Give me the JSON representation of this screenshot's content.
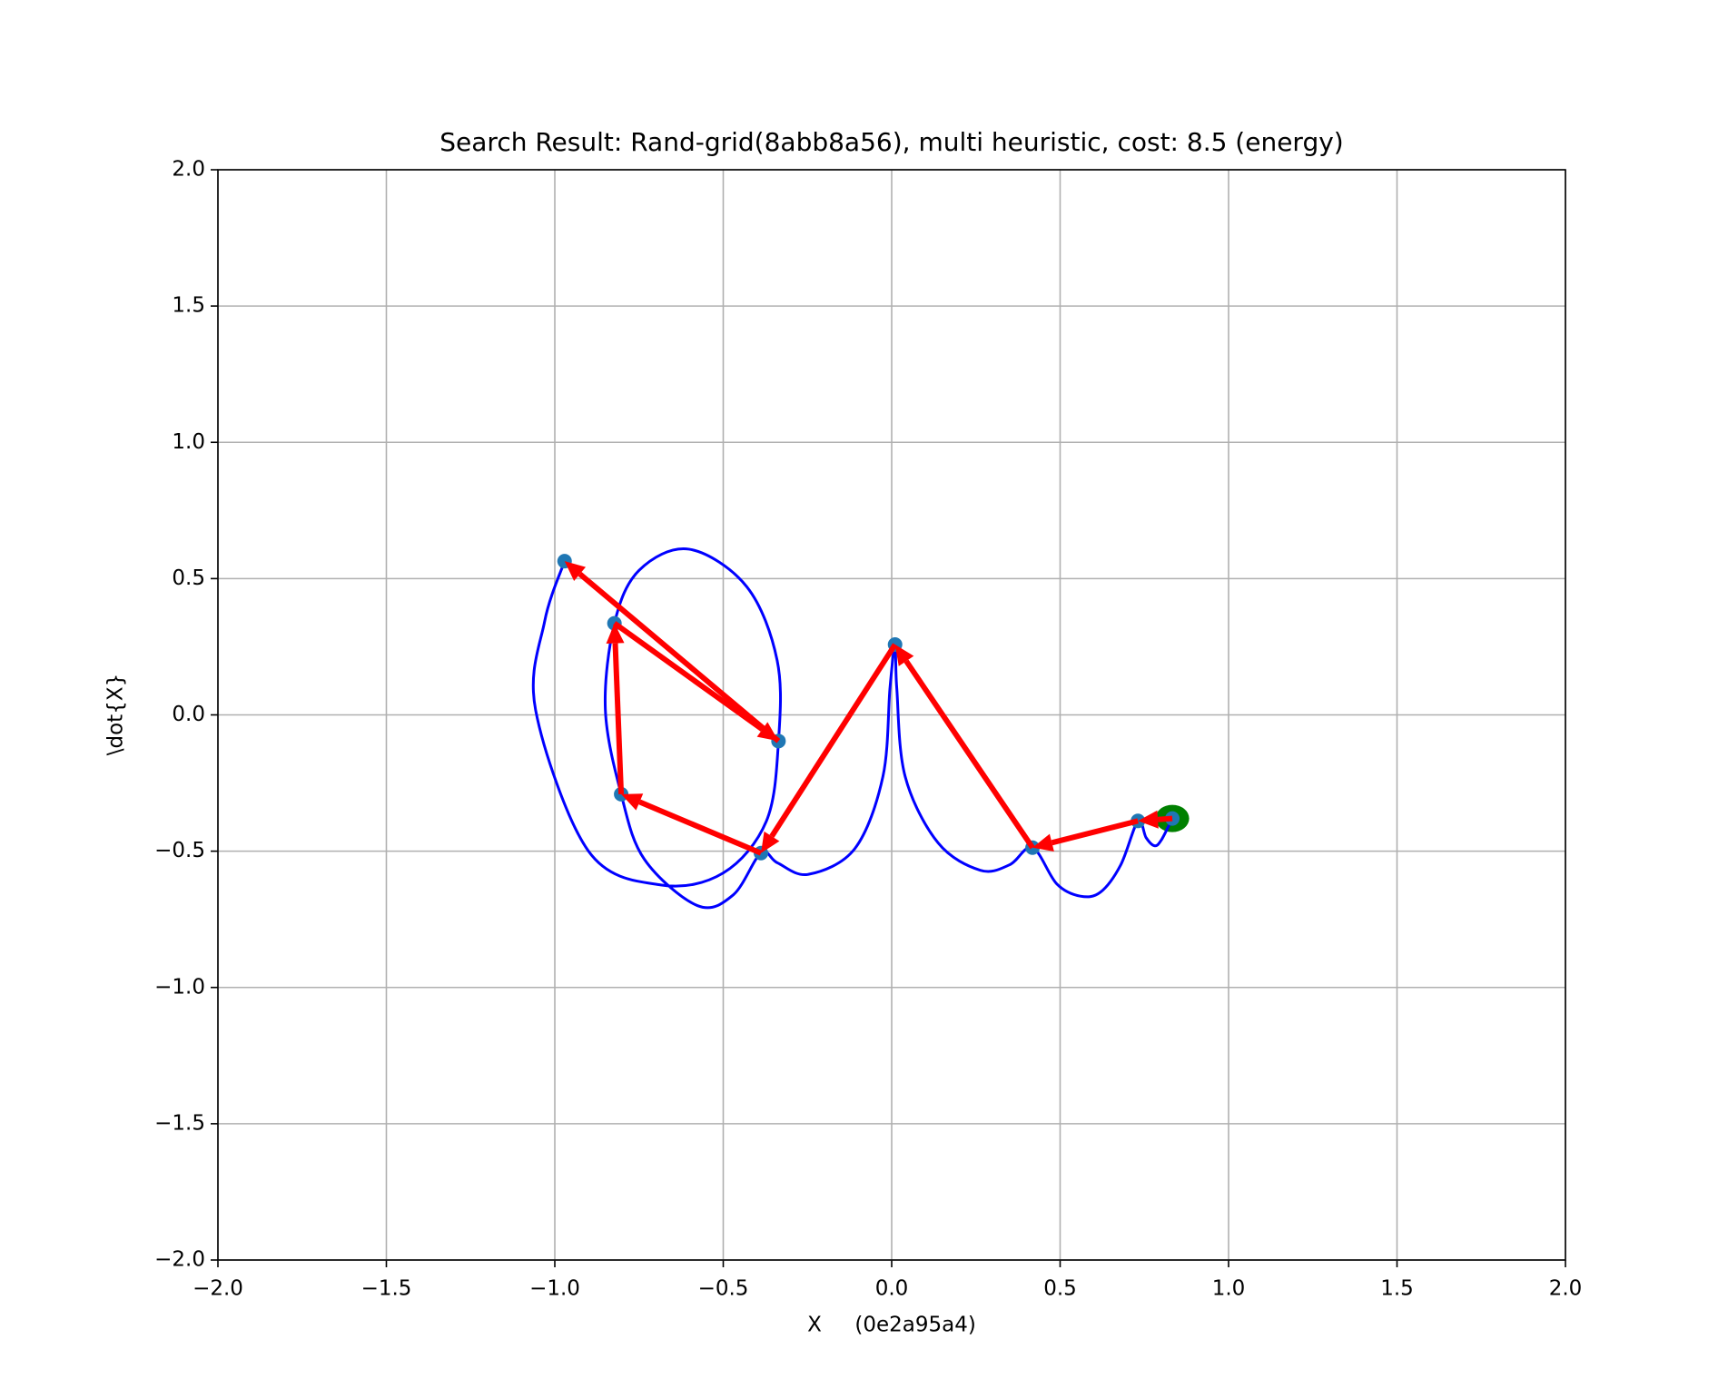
{
  "chart_data": {
    "type": "scatter",
    "title": "Search Result: Rand-grid(8abb8a56), multi heuristic, cost: 8.5 (energy)",
    "xlabel": "X     (0e2a95a4)",
    "ylabel": "\\dot{X}",
    "xlim": [
      -2,
      2
    ],
    "ylim": [
      -2,
      2
    ],
    "xticks": [
      {
        "value": -2,
        "label": "−2.0"
      },
      {
        "value": -1.5,
        "label": "−1.5"
      },
      {
        "value": -1,
        "label": "−1.0"
      },
      {
        "value": -0.5,
        "label": "−0.5"
      },
      {
        "value": 0,
        "label": "0.0"
      },
      {
        "value": 0.5,
        "label": "0.5"
      },
      {
        "value": 1,
        "label": "1.0"
      },
      {
        "value": 1.5,
        "label": "1.5"
      },
      {
        "value": 2,
        "label": "2.0"
      }
    ],
    "yticks": [
      {
        "value": -2,
        "label": "−2.0"
      },
      {
        "value": -1.5,
        "label": "−1.5"
      },
      {
        "value": -1,
        "label": "−1.0"
      },
      {
        "value": -0.5,
        "label": "−0.5"
      },
      {
        "value": 0,
        "label": "0.0"
      },
      {
        "value": 0.5,
        "label": "0.5"
      },
      {
        "value": 1,
        "label": "1.0"
      },
      {
        "value": 1.5,
        "label": "1.5"
      },
      {
        "value": 2,
        "label": "2.0"
      }
    ],
    "grid": true,
    "goal": {
      "x": 0.833,
      "y": -0.38,
      "rx": 0.05,
      "ry": 0.05,
      "color": "#008000"
    },
    "trajectory": {
      "color": "#0000ff",
      "x": [
        0.833,
        0.8,
        0.78,
        0.755,
        0.731,
        0.68,
        0.62,
        0.56,
        0.49,
        0.418,
        0.35,
        0.263,
        0.138,
        0.04,
        0.015,
        0.01,
        -0.005,
        -0.026,
        -0.109,
        -0.247,
        -0.339,
        -0.388,
        -0.47,
        -0.576,
        -0.734,
        -0.803,
        -0.85,
        -0.823,
        -0.75,
        -0.602,
        -0.43,
        -0.34,
        -0.336,
        -0.372,
        -0.5,
        -0.685,
        -0.9,
        -1.057,
        -1.03,
        -0.971
      ],
      "y": [
        -0.38,
        -0.46,
        -0.48,
        -0.45,
        -0.389,
        -0.55,
        -0.65,
        -0.665,
        -0.62,
        -0.487,
        -0.55,
        -0.57,
        -0.47,
        -0.226,
        0.1,
        0.258,
        0.1,
        -0.226,
        -0.49,
        -0.585,
        -0.543,
        -0.507,
        -0.66,
        -0.7,
        -0.53,
        -0.291,
        0.02,
        0.336,
        0.53,
        0.608,
        0.47,
        0.2,
        -0.096,
        -0.39,
        -0.58,
        -0.624,
        -0.5,
        0.018,
        0.344,
        0.564
      ]
    },
    "waypoints": {
      "color": "#1f77b4",
      "arrow_color": "#ff0000",
      "x": [
        0.833,
        0.731,
        0.418,
        0.01,
        -0.388,
        -0.803,
        -0.823,
        -0.336,
        -0.971
      ],
      "y": [
        -0.38,
        -0.389,
        -0.487,
        0.258,
        -0.507,
        -0.291,
        0.336,
        -0.096,
        0.564
      ]
    }
  }
}
